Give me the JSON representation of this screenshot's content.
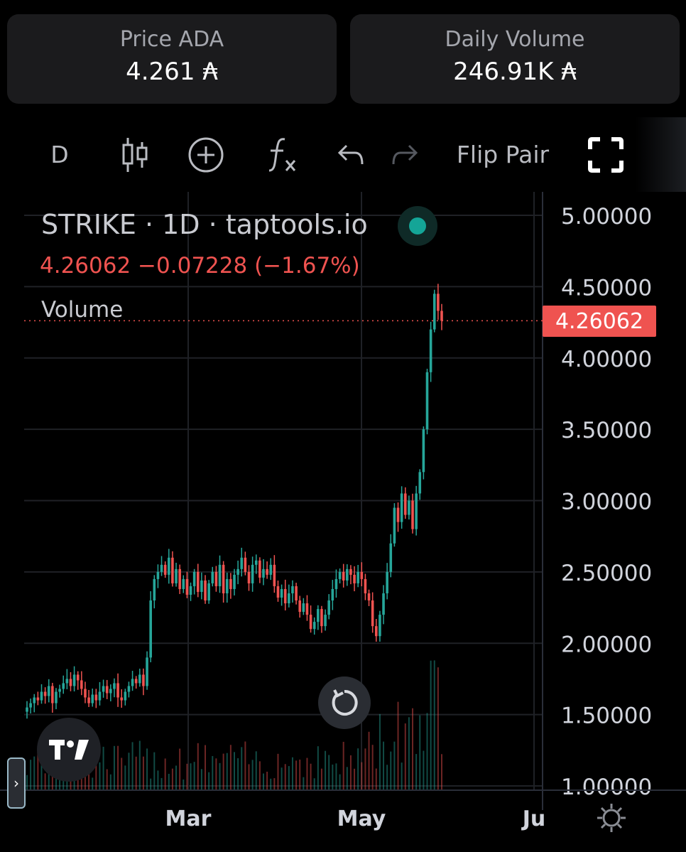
{
  "stats": {
    "price_label": "Price ADA",
    "price_value": "4.261 ₳",
    "volume_label": "Daily Volume",
    "volume_value": "246.91K ₳"
  },
  "toolbar": {
    "interval": "D",
    "flip_pair": "Flip Pair",
    "icons": [
      "candles-icon",
      "add-circle-icon",
      "indicators-fx-icon",
      "undo-icon",
      "redo-icon",
      "fullscreen-icon",
      "settings-icon"
    ]
  },
  "legend": {
    "title": "STRIKE · 1D · taptools.io",
    "values": "4.26062  −0.07228 (−1.67%)",
    "volume": "Volume"
  },
  "price_tag": "4.26062",
  "colors": {
    "up": "#26a69a",
    "down": "#ef5350",
    "grid": "#1f2126",
    "text": "#d1d4dc"
  },
  "chart_data": {
    "type": "candlestick",
    "symbol": "STRIKE",
    "interval": "1D",
    "source": "taptools.io",
    "last": 4.26062,
    "change": -0.07228,
    "change_pct": -1.67,
    "ylim": [
      1.0,
      5.0
    ],
    "y_ticks": [
      "5.00000",
      "4.50000",
      "4.00000",
      "3.50000",
      "3.00000",
      "2.50000",
      "2.00000",
      "1.50000",
      "1.00000"
    ],
    "x_ticks": [
      "Mar",
      "May",
      "Ju"
    ],
    "close_series": [
      1.55,
      1.58,
      1.62,
      1.6,
      1.66,
      1.63,
      1.7,
      1.58,
      1.66,
      1.68,
      1.72,
      1.75,
      1.7,
      1.78,
      1.74,
      1.68,
      1.62,
      1.58,
      1.64,
      1.6,
      1.66,
      1.7,
      1.65,
      1.68,
      1.72,
      1.62,
      1.6,
      1.66,
      1.7,
      1.75,
      1.72,
      1.78,
      1.7,
      1.9,
      2.3,
      2.45,
      2.5,
      2.55,
      2.48,
      2.6,
      2.42,
      2.52,
      2.38,
      2.45,
      2.34,
      2.4,
      2.5,
      2.36,
      2.44,
      2.3,
      2.42,
      2.5,
      2.4,
      2.55,
      2.35,
      2.45,
      2.38,
      2.48,
      2.52,
      2.6,
      2.5,
      2.42,
      2.55,
      2.58,
      2.46,
      2.52,
      2.48,
      2.55,
      2.4,
      2.32,
      2.38,
      2.28,
      2.35,
      2.4,
      2.3,
      2.22,
      2.28,
      2.2,
      2.1,
      2.15,
      2.24,
      2.12,
      2.2,
      2.3,
      2.38,
      2.45,
      2.5,
      2.44,
      2.52,
      2.48,
      2.42,
      2.5,
      2.45,
      2.35,
      2.3,
      2.12,
      2.05,
      2.2,
      2.35,
      2.5,
      2.7,
      2.95,
      2.85,
      3.05,
      2.9,
      3.0,
      2.8,
      3.05,
      3.2,
      3.5,
      3.9,
      4.2,
      4.45,
      4.33,
      4.26062
    ],
    "volume_note": "volume bars shown as relative heights"
  }
}
